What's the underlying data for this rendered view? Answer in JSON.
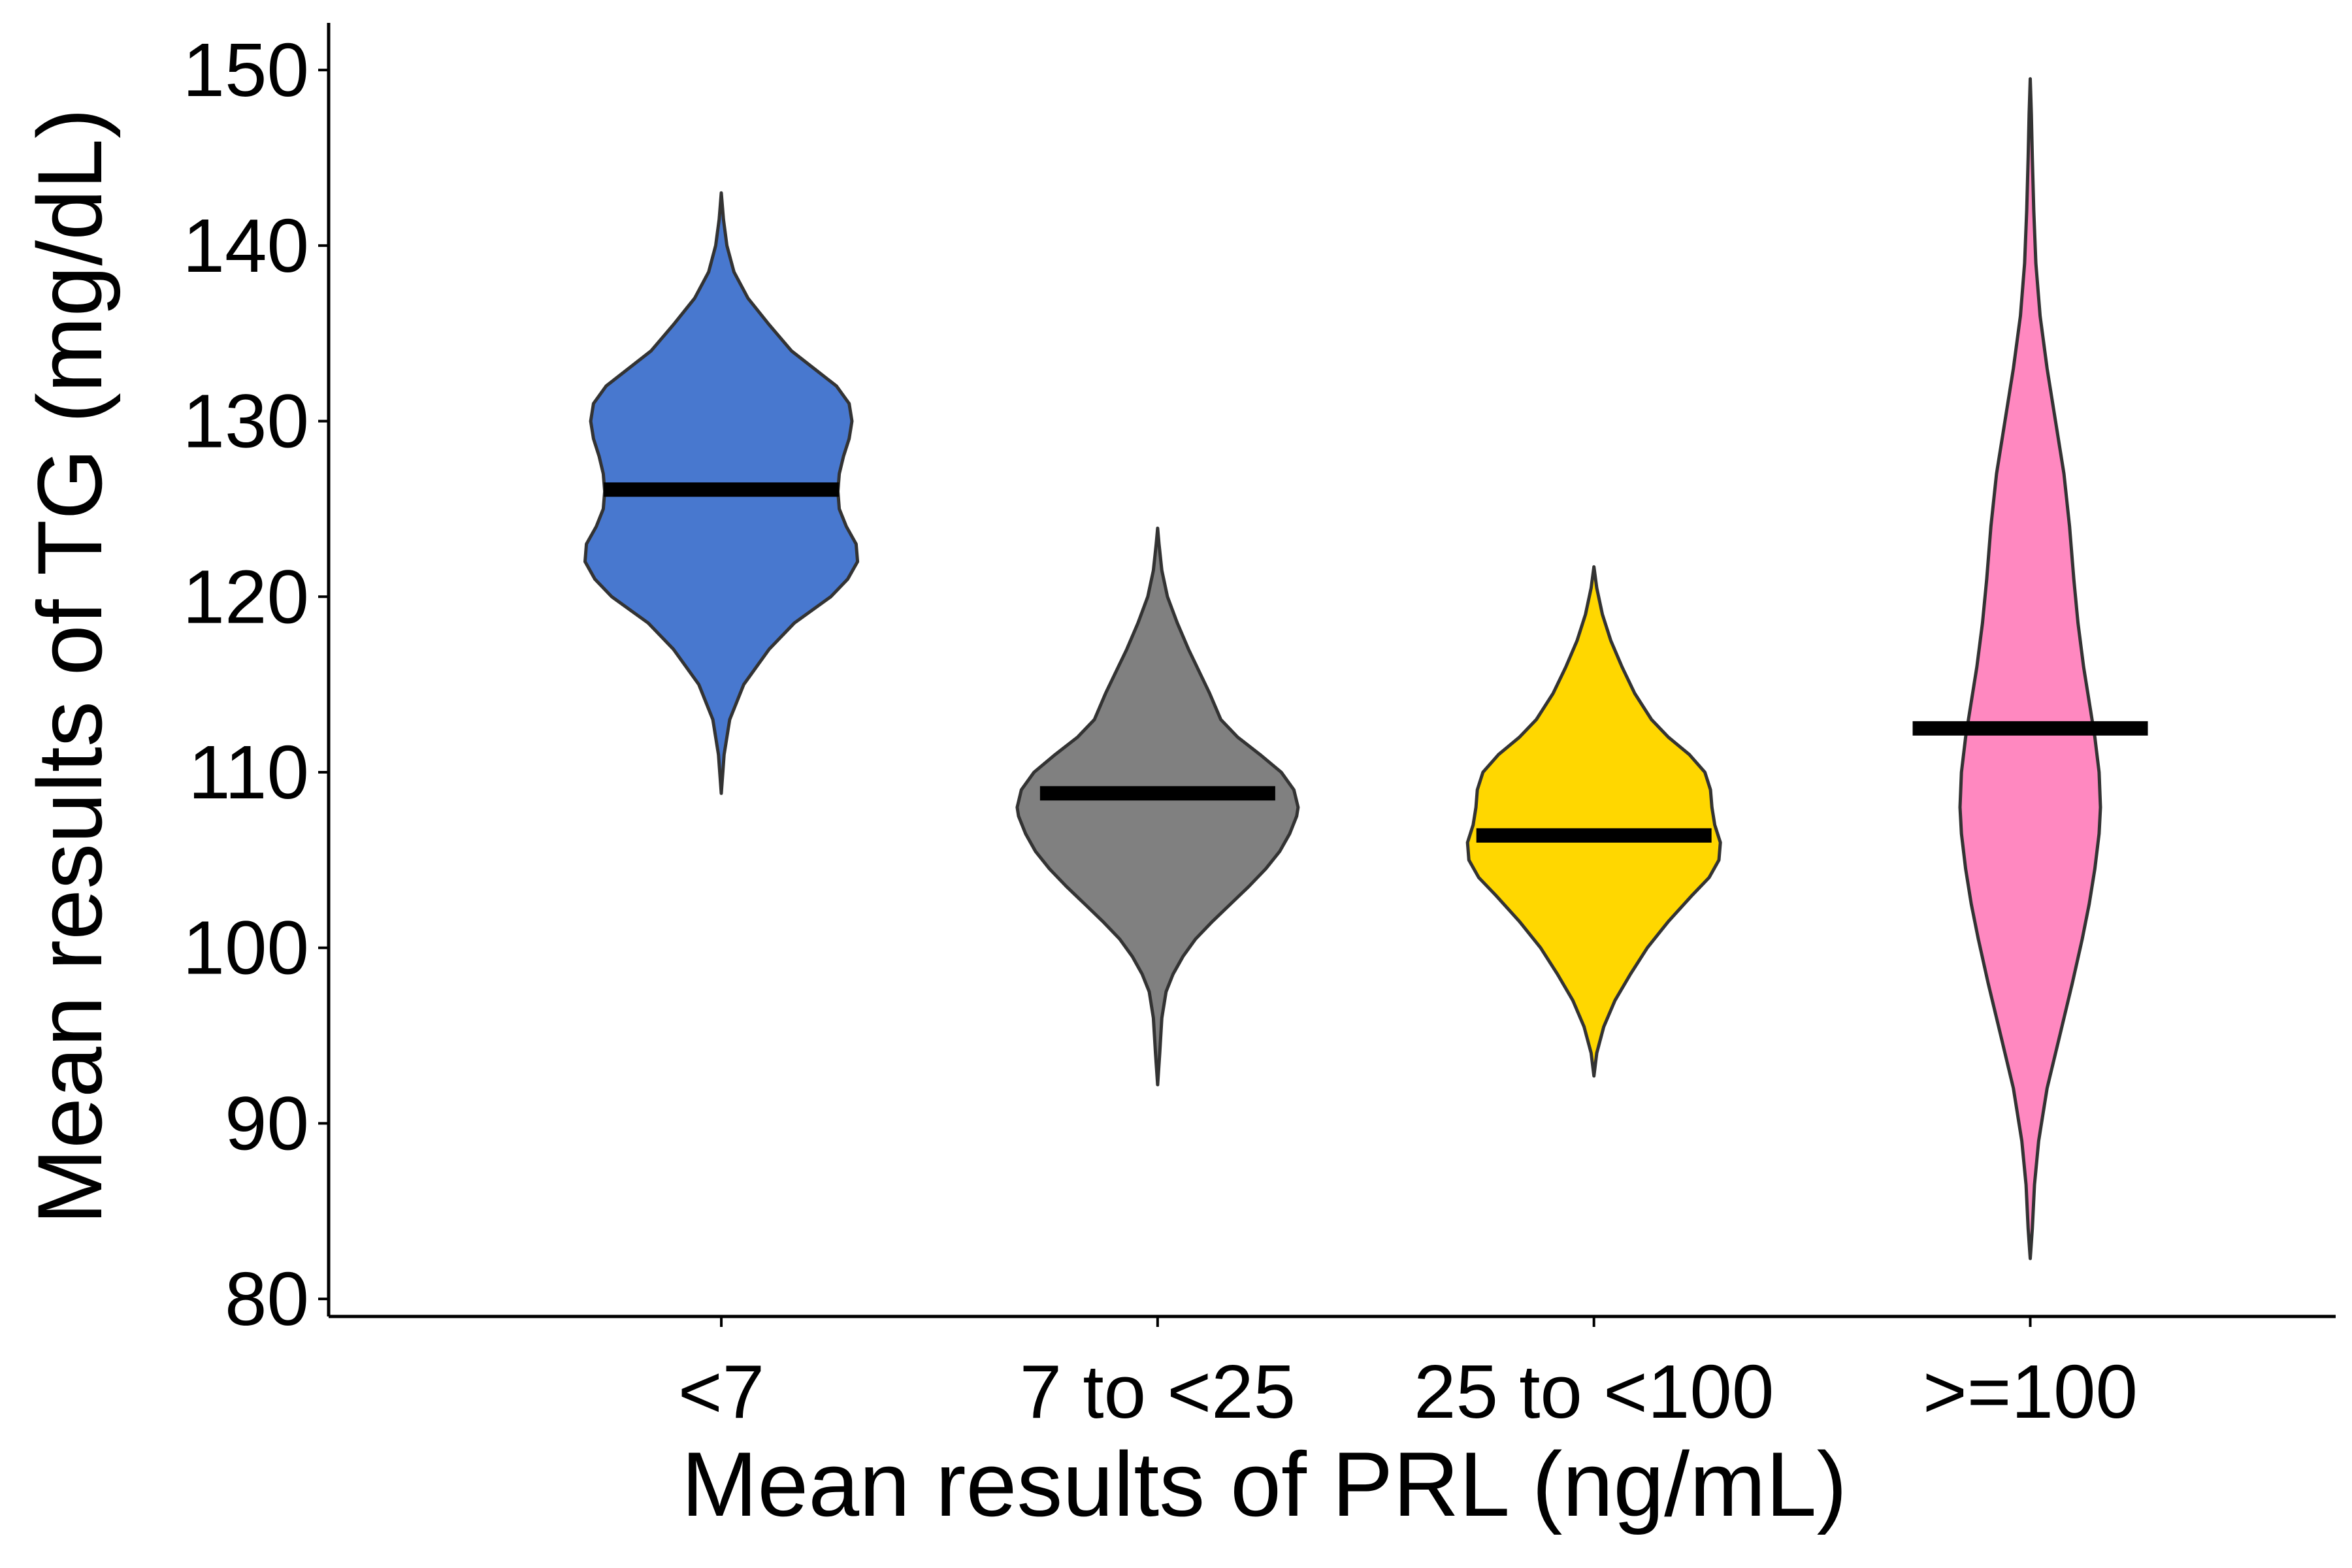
{
  "chart_data": {
    "type": "violin",
    "xlabel": "Mean results of PRL (ng/mL)",
    "ylabel": "Mean results of TG (mg/dL)",
    "ylim": [
      79,
      152.5
    ],
    "y_ticks": [
      "80",
      "90",
      "100",
      "110",
      "120",
      "130",
      "140",
      "150"
    ],
    "grid": false,
    "legend": "none",
    "categories": [
      "<7",
      "7 to <25",
      "25 to <100",
      ">=100"
    ],
    "series": [
      {
        "category": "<7",
        "color": "#4878CF",
        "mean": 126.1,
        "min": 108.8,
        "max": 143.0,
        "density": [
          [
            108.8,
            0.0
          ],
          [
            111.0,
            0.02
          ],
          [
            113.0,
            0.06
          ],
          [
            115.0,
            0.16
          ],
          [
            117.0,
            0.34
          ],
          [
            118.5,
            0.52
          ],
          [
            120.0,
            0.78
          ],
          [
            121.0,
            0.9
          ],
          [
            122.0,
            0.97
          ],
          [
            123.0,
            0.96
          ],
          [
            124.0,
            0.89
          ],
          [
            125.0,
            0.84
          ],
          [
            126.0,
            0.83
          ],
          [
            127.0,
            0.84
          ],
          [
            128.0,
            0.87
          ],
          [
            129.0,
            0.91
          ],
          [
            130.0,
            0.93
          ],
          [
            131.0,
            0.91
          ],
          [
            132.0,
            0.82
          ],
          [
            133.0,
            0.66
          ],
          [
            134.0,
            0.5
          ],
          [
            135.5,
            0.34
          ],
          [
            137.0,
            0.19
          ],
          [
            138.5,
            0.09
          ],
          [
            140.0,
            0.04
          ],
          [
            141.5,
            0.015
          ],
          [
            143.0,
            0.0
          ]
        ]
      },
      {
        "category": "7 to <25",
        "color": "#808080",
        "mean": 108.8,
        "min": 92.2,
        "max": 123.9,
        "density": [
          [
            92.2,
            0.0
          ],
          [
            94.0,
            0.015
          ],
          [
            96.0,
            0.03
          ],
          [
            97.5,
            0.06
          ],
          [
            98.5,
            0.11
          ],
          [
            99.5,
            0.18
          ],
          [
            100.5,
            0.27
          ],
          [
            101.5,
            0.39
          ],
          [
            102.5,
            0.52
          ],
          [
            103.5,
            0.65
          ],
          [
            104.5,
            0.77
          ],
          [
            105.5,
            0.87
          ],
          [
            106.5,
            0.94
          ],
          [
            107.5,
            0.99
          ],
          [
            108.0,
            1.0
          ],
          [
            109.0,
            0.97
          ],
          [
            110.0,
            0.88
          ],
          [
            111.0,
            0.73
          ],
          [
            112.0,
            0.57
          ],
          [
            113.0,
            0.45
          ],
          [
            114.5,
            0.37
          ],
          [
            115.5,
            0.31
          ],
          [
            117.0,
            0.22
          ],
          [
            118.5,
            0.14
          ],
          [
            120.0,
            0.07
          ],
          [
            121.5,
            0.03
          ],
          [
            123.0,
            0.01
          ],
          [
            123.9,
            0.0
          ]
        ]
      },
      {
        "category": "25 to <100",
        "color": "#FFD700",
        "mean": 106.4,
        "min": 92.7,
        "max": 121.7,
        "density": [
          [
            92.7,
            0.0
          ],
          [
            94.0,
            0.02
          ],
          [
            95.5,
            0.07
          ],
          [
            97.0,
            0.15
          ],
          [
            98.5,
            0.26
          ],
          [
            100.0,
            0.38
          ],
          [
            101.5,
            0.53
          ],
          [
            103.0,
            0.7
          ],
          [
            104.0,
            0.82
          ],
          [
            105.0,
            0.89
          ],
          [
            106.0,
            0.9
          ],
          [
            107.0,
            0.86
          ],
          [
            108.0,
            0.84
          ],
          [
            109.0,
            0.83
          ],
          [
            110.0,
            0.79
          ],
          [
            111.0,
            0.68
          ],
          [
            112.0,
            0.53
          ],
          [
            113.0,
            0.41
          ],
          [
            114.5,
            0.29
          ],
          [
            116.0,
            0.2
          ],
          [
            117.5,
            0.12
          ],
          [
            119.0,
            0.06
          ],
          [
            120.5,
            0.02
          ],
          [
            121.7,
            0.0
          ]
        ]
      },
      {
        "category": ">=100",
        "color": "#FF88C0",
        "mean": 112.5,
        "min": 82.3,
        "max": 149.5,
        "density": [
          [
            82.3,
            0.0
          ],
          [
            84.0,
            0.015
          ],
          [
            86.5,
            0.03
          ],
          [
            89.0,
            0.06
          ],
          [
            92.0,
            0.12
          ],
          [
            95.0,
            0.21
          ],
          [
            98.0,
            0.3
          ],
          [
            100.5,
            0.37
          ],
          [
            102.5,
            0.42
          ],
          [
            104.5,
            0.46
          ],
          [
            106.5,
            0.49
          ],
          [
            108.0,
            0.5
          ],
          [
            110.0,
            0.49
          ],
          [
            112.0,
            0.46
          ],
          [
            114.0,
            0.42
          ],
          [
            116.0,
            0.38
          ],
          [
            118.5,
            0.34
          ],
          [
            121.0,
            0.31
          ],
          [
            124.0,
            0.28
          ],
          [
            127.0,
            0.24
          ],
          [
            130.0,
            0.18
          ],
          [
            133.0,
            0.12
          ],
          [
            136.0,
            0.07
          ],
          [
            139.0,
            0.04
          ],
          [
            142.0,
            0.025
          ],
          [
            145.0,
            0.015
          ],
          [
            147.5,
            0.008
          ],
          [
            149.5,
            0.0
          ]
        ]
      }
    ]
  }
}
